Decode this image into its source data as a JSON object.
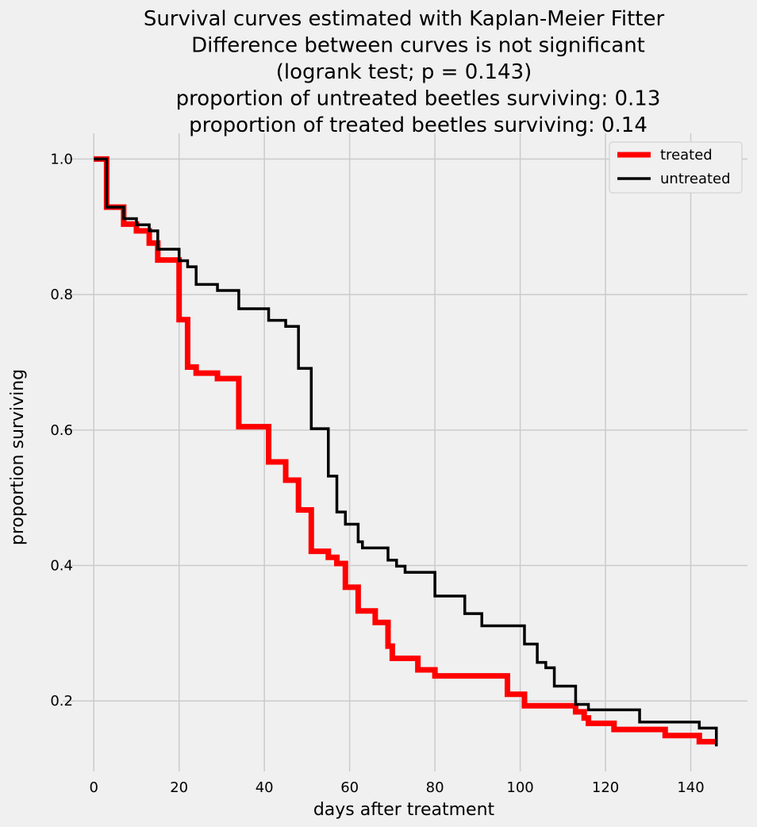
{
  "chart_data": {
    "type": "line",
    "title_lines": [
      "Survival curves estimated with Kaplan-Meier Fitter",
      "Difference between curves is not significant",
      "(logrank test; p = 0.143)",
      "proportion of untreated beetles surviving: 0.13",
      "proportion of treated beetles surviving: 0.14"
    ],
    "xlabel": "days after treatment",
    "ylabel": "proportion surviving",
    "xlim": [
      -7.3,
      153.3
    ],
    "ylim": [
      0.096,
      1.038
    ],
    "xticks": [
      0,
      20,
      40,
      60,
      80,
      100,
      120,
      140
    ],
    "yticks": [
      0.2,
      0.4,
      0.6,
      0.8,
      1.0
    ],
    "xtick_labels": [
      "0",
      "20",
      "40",
      "60",
      "80",
      "100",
      "120",
      "140"
    ],
    "ytick_labels": [
      "0.2",
      "0.4",
      "0.6",
      "0.8",
      "1.0"
    ],
    "grid": true,
    "legend_position": "top-right",
    "series": [
      {
        "name": "treated",
        "color": "#ff0000",
        "step": "post",
        "points": [
          [
            0,
            1.0
          ],
          [
            3,
            0.929
          ],
          [
            7,
            0.904
          ],
          [
            10,
            0.894
          ],
          [
            13,
            0.876
          ],
          [
            15,
            0.851
          ],
          [
            20,
            0.763
          ],
          [
            22,
            0.693
          ],
          [
            24,
            0.684
          ],
          [
            29,
            0.676
          ],
          [
            34,
            0.605
          ],
          [
            41,
            0.553
          ],
          [
            45,
            0.526
          ],
          [
            48,
            0.482
          ],
          [
            51,
            0.421
          ],
          [
            55,
            0.412
          ],
          [
            57,
            0.403
          ],
          [
            59,
            0.368
          ],
          [
            62,
            0.333
          ],
          [
            66,
            0.316
          ],
          [
            69,
            0.281
          ],
          [
            70,
            0.263
          ],
          [
            76,
            0.246
          ],
          [
            80,
            0.237
          ],
          [
            91,
            0.237
          ],
          [
            97,
            0.228
          ],
          [
            97,
            0.21
          ],
          [
            101,
            0.193
          ],
          [
            113,
            0.184
          ],
          [
            115,
            0.175
          ],
          [
            116,
            0.167
          ],
          [
            122,
            0.158
          ],
          [
            134,
            0.149
          ],
          [
            142,
            0.14
          ],
          [
            146,
            0.14
          ]
        ]
      },
      {
        "name": "untreated",
        "color": "#000000",
        "step": "post",
        "points": [
          [
            0,
            1.0
          ],
          [
            3,
            0.929
          ],
          [
            7,
            0.912
          ],
          [
            10,
            0.903
          ],
          [
            13,
            0.894
          ],
          [
            15,
            0.867
          ],
          [
            20,
            0.85
          ],
          [
            22,
            0.841
          ],
          [
            24,
            0.815
          ],
          [
            29,
            0.806
          ],
          [
            34,
            0.779
          ],
          [
            41,
            0.762
          ],
          [
            45,
            0.753
          ],
          [
            48,
            0.691
          ],
          [
            51,
            0.602
          ],
          [
            55,
            0.532
          ],
          [
            57,
            0.479
          ],
          [
            59,
            0.461
          ],
          [
            62,
            0.435
          ],
          [
            63,
            0.426
          ],
          [
            69,
            0.408
          ],
          [
            71,
            0.399
          ],
          [
            73,
            0.39
          ],
          [
            80,
            0.355
          ],
          [
            87,
            0.329
          ],
          [
            91,
            0.311
          ],
          [
            101,
            0.284
          ],
          [
            104,
            0.257
          ],
          [
            106,
            0.249
          ],
          [
            108,
            0.222
          ],
          [
            113,
            0.195
          ],
          [
            116,
            0.187
          ],
          [
            128,
            0.169
          ],
          [
            142,
            0.16
          ],
          [
            146,
            0.133
          ]
        ]
      }
    ]
  }
}
